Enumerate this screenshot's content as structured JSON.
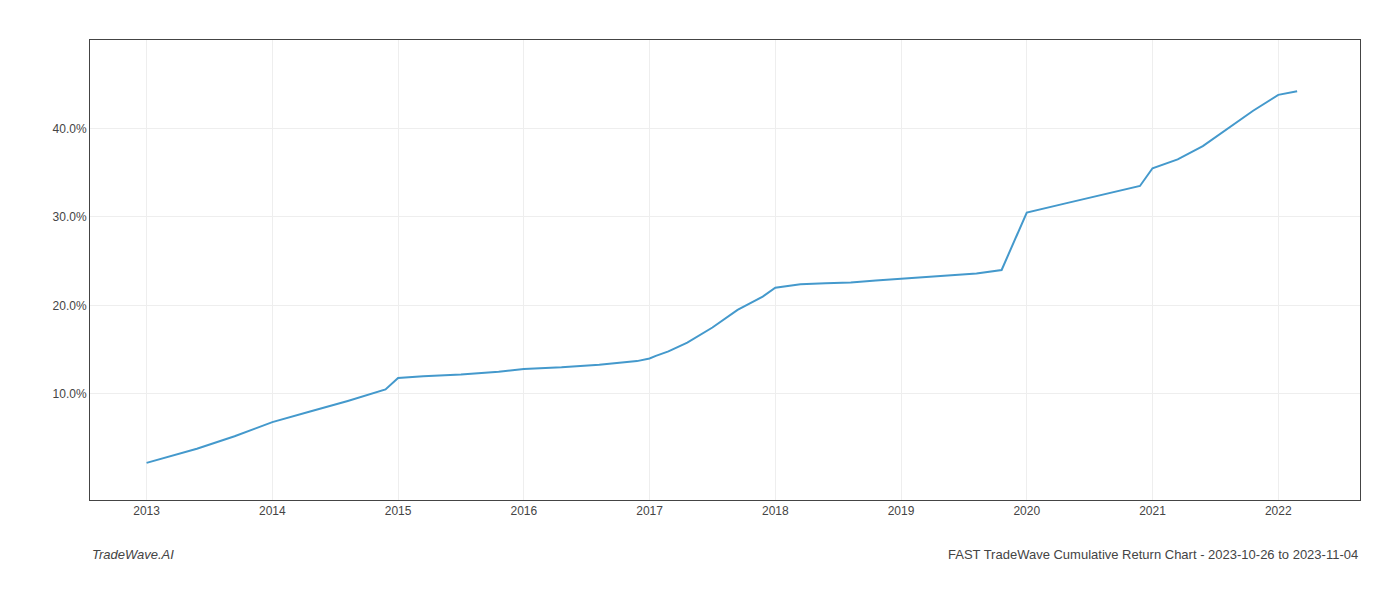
{
  "chart_data": {
    "type": "line",
    "x": [
      2013.0,
      2013.15,
      2013.4,
      2013.7,
      2014.0,
      2014.3,
      2014.6,
      2014.9,
      2015.0,
      2015.2,
      2015.5,
      2015.8,
      2016.0,
      2016.3,
      2016.6,
      2016.9,
      2017.0,
      2017.05,
      2017.15,
      2017.3,
      2017.5,
      2017.7,
      2017.9,
      2018.0,
      2018.1,
      2018.2,
      2018.4,
      2018.6,
      2018.8,
      2019.0,
      2019.2,
      2019.4,
      2019.6,
      2019.8,
      2020.0,
      2020.3,
      2020.6,
      2020.9,
      2021.0,
      2021.2,
      2021.4,
      2021.6,
      2021.8,
      2022.0,
      2022.15
    ],
    "values": [
      2.2,
      2.8,
      3.8,
      5.2,
      6.8,
      8.0,
      9.2,
      10.5,
      11.8,
      12.0,
      12.2,
      12.5,
      12.8,
      13.0,
      13.3,
      13.7,
      14.0,
      14.3,
      14.8,
      15.8,
      17.5,
      19.5,
      21.0,
      22.0,
      22.2,
      22.4,
      22.5,
      22.6,
      22.8,
      23.0,
      23.2,
      23.4,
      23.6,
      24.0,
      30.5,
      31.5,
      32.5,
      33.5,
      35.5,
      36.5,
      38.0,
      40.0,
      42.0,
      43.8,
      44.2
    ],
    "color": "#4499cc",
    "xlim": [
      2012.55,
      2022.65
    ],
    "xticks": [
      2013,
      2014,
      2015,
      2016,
      2017,
      2018,
      2019,
      2020,
      2021,
      2022
    ],
    "ylim": [
      -2,
      50
    ],
    "yticks": [
      {
        "value": 10,
        "label": "10.0%"
      },
      {
        "value": 20,
        "label": "20.0%"
      },
      {
        "value": 30,
        "label": "30.0%"
      },
      {
        "value": 40,
        "label": "40.0%"
      }
    ],
    "grid": true,
    "annotations": [
      "TradeWave.AI",
      "FAST TradeWave Cumulative Return Chart - 2023-10-26 to 2023-11-04"
    ]
  }
}
